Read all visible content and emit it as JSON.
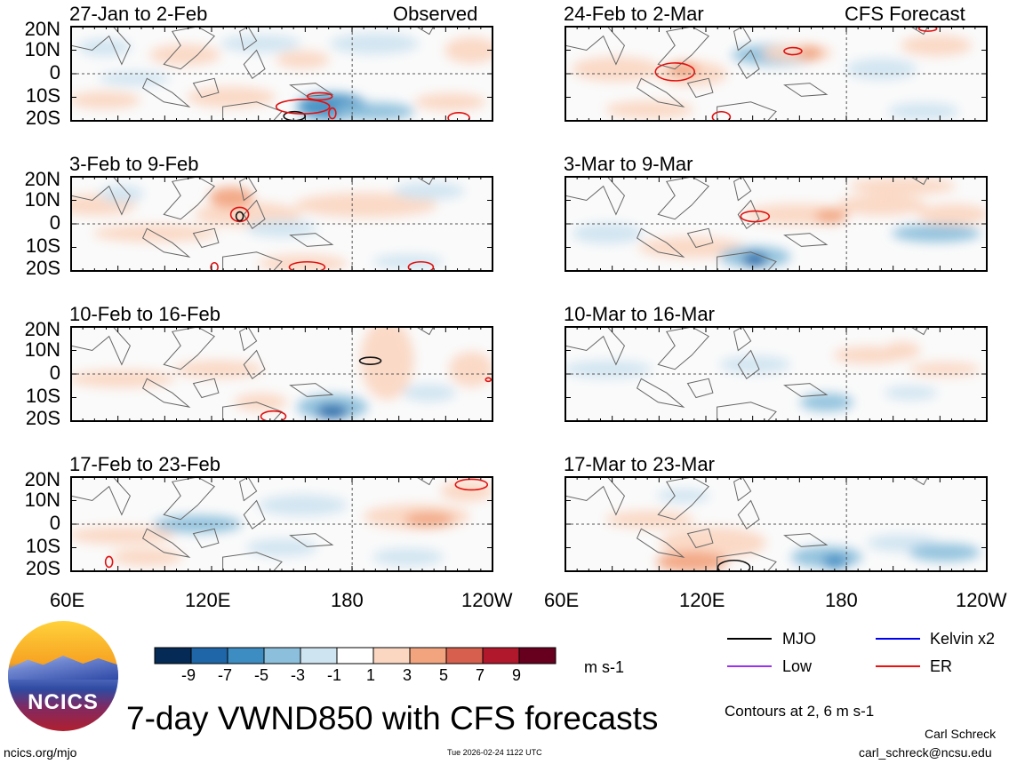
{
  "chart_data": {
    "type": "heatmap",
    "title": "7-day VWND850 with CFS forecasts",
    "variable": "VWND850",
    "units": "m s-1",
    "x_ticks": [
      "60E",
      "120E",
      "180",
      "120W"
    ],
    "x_ticks_right": [
      "60E",
      "120E",
      "180",
      "120W"
    ],
    "y_ticks": [
      "20N",
      "10N",
      "0",
      "10S",
      "20S"
    ],
    "colorbar_ticks": [
      "-9",
      "-7",
      "-5",
      "-3",
      "-1",
      "1",
      "3",
      "5",
      "7",
      "9"
    ],
    "colorbar_colors": [
      "#052a55",
      "#1f66a8",
      "#3d8cc2",
      "#8bbfdb",
      "#cfe4f1",
      "#ffffff",
      "#fbd7c2",
      "#f2a47f",
      "#d6604d",
      "#b2182b",
      "#67001f"
    ],
    "left_column_label": "Observed",
    "right_column_label": "CFS Forecast",
    "panels": [
      {
        "period": "27-Jan to 2-Feb",
        "column": "observed"
      },
      {
        "period": "3-Feb to 9-Feb",
        "column": "observed"
      },
      {
        "period": "10-Feb to 16-Feb",
        "column": "observed"
      },
      {
        "period": "17-Feb to 23-Feb",
        "column": "observed"
      },
      {
        "period": "24-Feb to 2-Mar",
        "column": "forecast"
      },
      {
        "period": "3-Mar to 9-Mar",
        "column": "forecast"
      },
      {
        "period": "10-Mar to 16-Mar",
        "column": "forecast"
      },
      {
        "period": "17-Mar to 23-Mar",
        "column": "forecast"
      }
    ],
    "legend": [
      {
        "label": "MJO",
        "color": "#000000"
      },
      {
        "label": "Kelvin x2",
        "color": "#0000ee"
      },
      {
        "label": "Low",
        "color": "#9933ee"
      },
      {
        "label": "ER",
        "color": "#ee1111"
      }
    ],
    "contour_note": "Contours at 2, 6 m s-1"
  },
  "branding": {
    "logo_text": "NCICS",
    "url": "ncics.org/mjo",
    "timestamp": "Tue 2026-02-24 1122 UTC",
    "author": "Carl Schreck",
    "email": "carl_schreck@ncsu.edu"
  }
}
